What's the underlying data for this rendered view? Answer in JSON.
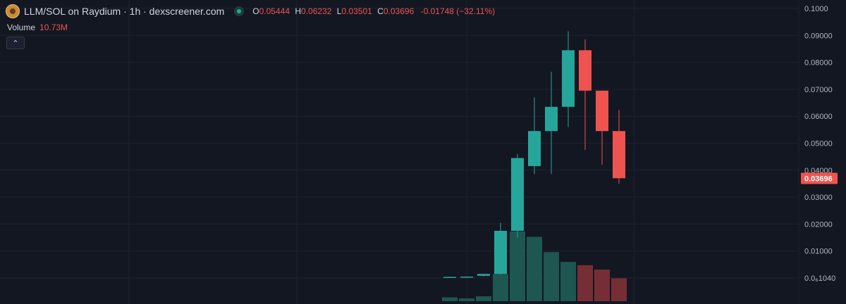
{
  "header": {
    "title": "LLM/SOL on Raydium · 1h · dexscreener.com",
    "ohlc": {
      "o_label": "O",
      "o": "0.05444",
      "h_label": "H",
      "h": "0.06232",
      "l_label": "L",
      "l": "0.03501",
      "c_label": "C",
      "c": "0.03696",
      "change": "-0.01748 (−32.11%)"
    },
    "volume_label": "Volume",
    "volume_value": "10.73M",
    "collapse_icon": "chevron-up-icon"
  },
  "colors": {
    "background": "#131722",
    "up": "#26a69a",
    "down": "#ef5350",
    "grid": "#1f2330"
  },
  "chart_data": {
    "type": "candlestick",
    "y_ticks": [
      {
        "value": 0.1,
        "label": "0.1000"
      },
      {
        "value": 0.09,
        "label": "0.09000"
      },
      {
        "value": 0.08,
        "label": "0.08000"
      },
      {
        "value": 0.07,
        "label": "0.07000"
      },
      {
        "value": 0.06,
        "label": "0.06000"
      },
      {
        "value": 0.05,
        "label": "0.05000"
      },
      {
        "value": 0.04,
        "label": "0.04000"
      },
      {
        "value": 0.03,
        "label": "0.03000"
      },
      {
        "value": 0.02,
        "label": "0.02000"
      },
      {
        "value": 0.01,
        "label": "0.01000"
      },
      {
        "value": 0.0,
        "label": "0.0₆1040"
      }
    ],
    "ylim": [
      0,
      0.1
    ],
    "last_price": "0.03696",
    "candles": [
      {
        "o": 0.0003,
        "h": 0.0005,
        "l": 0.0002,
        "c": 0.0004,
        "v": 0.35
      },
      {
        "o": 0.0004,
        "h": 0.0006,
        "l": 0.0003,
        "c": 0.0005,
        "v": 0.25
      },
      {
        "o": 0.0008,
        "h": 0.0012,
        "l": 0.0006,
        "c": 0.0015,
        "v": 0.45
      },
      {
        "o": 0.0015,
        "h": 0.0205,
        "l": 0.0012,
        "c": 0.0175,
        "v": 2.5
      },
      {
        "o": 0.0175,
        "h": 0.046,
        "l": 0.015,
        "c": 0.0445,
        "v": 6.4
      },
      {
        "o": 0.0415,
        "h": 0.067,
        "l": 0.0385,
        "c": 0.0545,
        "v": 5.9
      },
      {
        "o": 0.0545,
        "h": 0.0765,
        "l": 0.0385,
        "c": 0.0635,
        "v": 4.5
      },
      {
        "o": 0.0635,
        "h": 0.0915,
        "l": 0.056,
        "c": 0.0845,
        "v": 3.6
      },
      {
        "o": 0.0845,
        "h": 0.0885,
        "l": 0.0475,
        "c": 0.0695,
        "v": 3.3
      },
      {
        "o": 0.0695,
        "h": 0.0695,
        "l": 0.042,
        "c": 0.0545,
        "v": 2.9
      },
      {
        "o": 0.0545,
        "h": 0.0623,
        "l": 0.035,
        "c": 0.037,
        "v": 2.1
      }
    ]
  }
}
